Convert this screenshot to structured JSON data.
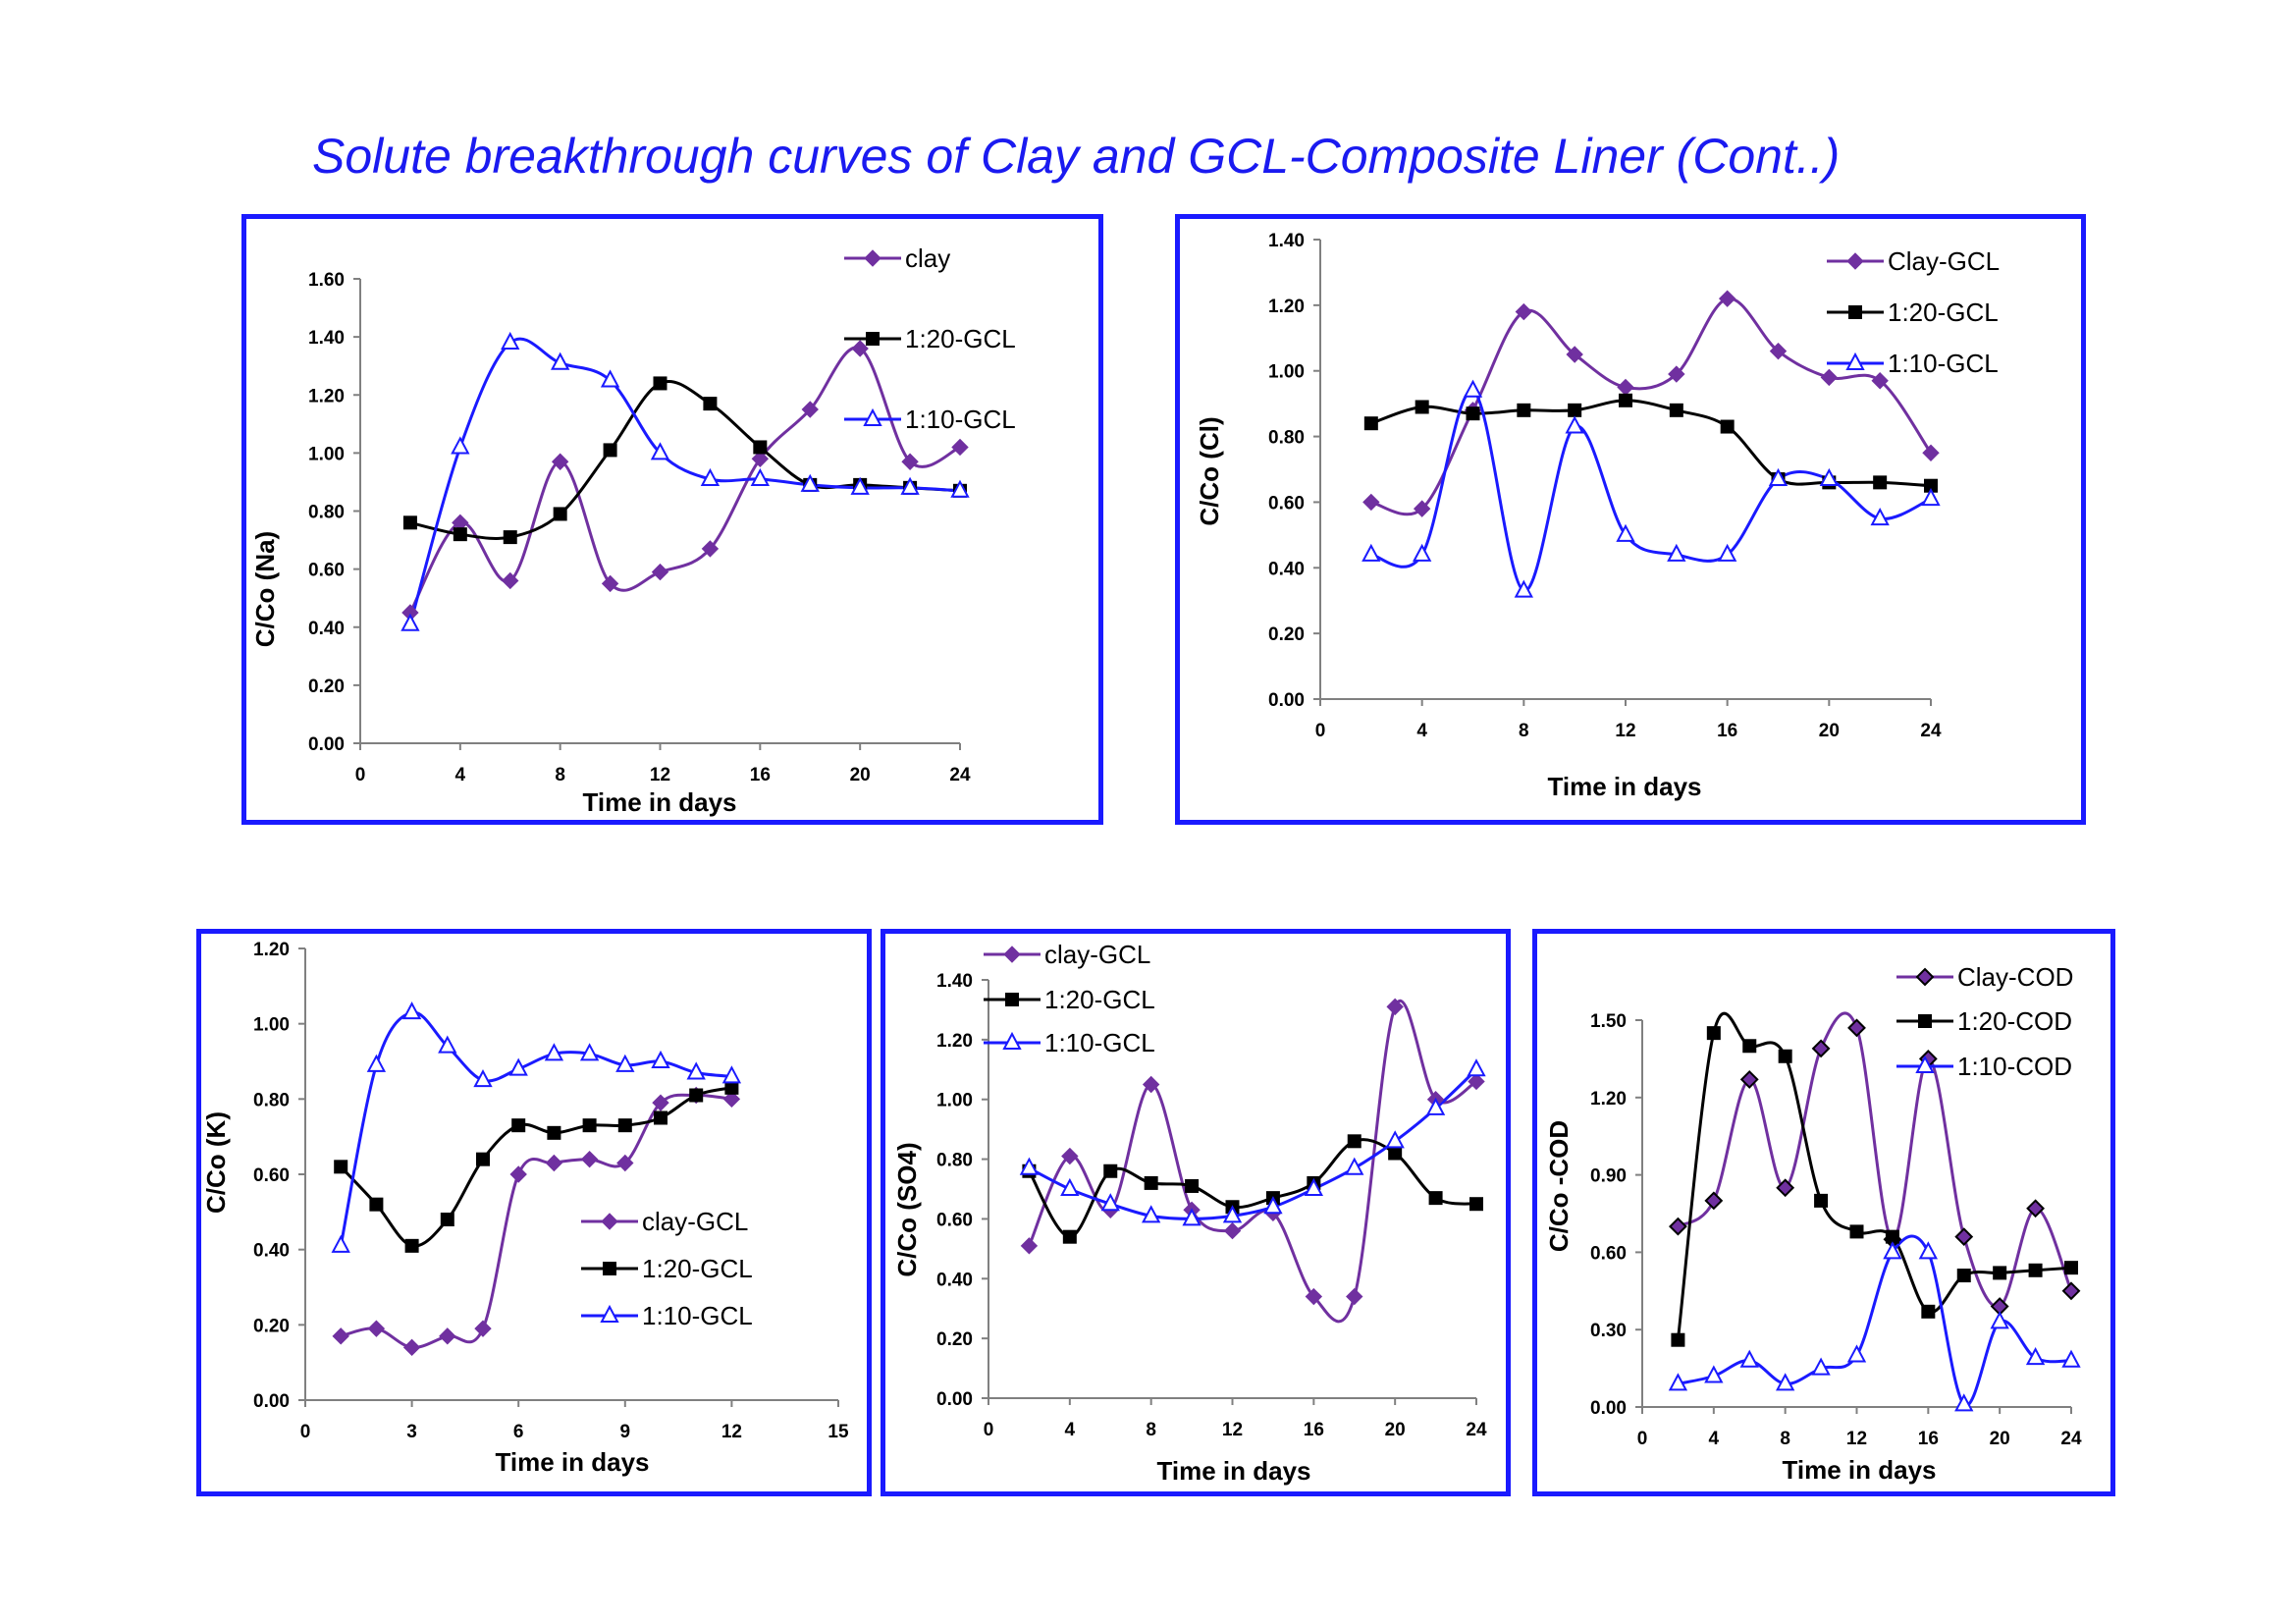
{
  "page": {
    "title": "Solute breakthrough curves of Clay and GCL-Composite Liner (Cont..)"
  },
  "chart_data": [
    {
      "id": "na",
      "type": "line",
      "xlabel": "Time in days",
      "ylabel": "C/Co (Na)",
      "xlim": [
        0,
        24
      ],
      "ylim": [
        0,
        1.6
      ],
      "xticks": [
        "0",
        "4",
        "8",
        "12",
        "16",
        "20",
        "24"
      ],
      "yticks": [
        "0.00",
        "0.20",
        "0.40",
        "0.60",
        "0.80",
        "1.00",
        "1.20",
        "1.40",
        "1.60"
      ],
      "legend_position": "right",
      "series": [
        {
          "name": "clay",
          "marker": "diamond",
          "color": "#7030a0",
          "x": [
            2,
            4,
            6,
            8,
            10,
            12,
            14,
            16,
            18,
            20,
            22,
            24
          ],
          "y": [
            0.45,
            0.76,
            0.56,
            0.97,
            0.55,
            0.59,
            0.67,
            0.98,
            1.15,
            1.36,
            0.97,
            1.02
          ]
        },
        {
          "name": "1:20-GCL",
          "marker": "square",
          "color": "#000000",
          "x": [
            2,
            4,
            6,
            8,
            10,
            12,
            14,
            16,
            18,
            20,
            22,
            24
          ],
          "y": [
            0.76,
            0.72,
            0.71,
            0.79,
            1.01,
            1.24,
            1.17,
            1.02,
            0.89,
            0.89,
            0.88,
            0.87
          ]
        },
        {
          "name": "1:10-GCL",
          "marker": "triangle",
          "color": "#1a1aff",
          "x": [
            2,
            4,
            6,
            8,
            10,
            12,
            14,
            16,
            18,
            20,
            22,
            24
          ],
          "y": [
            0.41,
            1.02,
            1.38,
            1.31,
            1.25,
            1.0,
            0.91,
            0.91,
            0.89,
            0.88,
            0.88,
            0.87
          ]
        }
      ]
    },
    {
      "id": "cl",
      "type": "line",
      "xlabel": "Time in days",
      "ylabel": "C/Co (Cl)",
      "xlim": [
        0,
        24
      ],
      "ylim": [
        0,
        1.4
      ],
      "xticks": [
        "0",
        "4",
        "8",
        "12",
        "16",
        "20",
        "24"
      ],
      "yticks": [
        "0.00",
        "0.20",
        "0.40",
        "0.60",
        "0.80",
        "1.00",
        "1.20",
        "1.40"
      ],
      "legend_position": "top-right",
      "series": [
        {
          "name": "Clay-GCL",
          "marker": "diamond",
          "color": "#7030a0",
          "x": [
            2,
            4,
            6,
            8,
            10,
            12,
            14,
            16,
            18,
            20,
            22,
            24
          ],
          "y": [
            0.6,
            0.58,
            0.88,
            1.18,
            1.05,
            0.95,
            0.99,
            1.22,
            1.06,
            0.98,
            0.97,
            0.75
          ]
        },
        {
          "name": "1:20-GCL",
          "marker": "square",
          "color": "#000000",
          "x": [
            2,
            4,
            6,
            8,
            10,
            12,
            14,
            16,
            18,
            20,
            22,
            24
          ],
          "y": [
            0.84,
            0.89,
            0.87,
            0.88,
            0.88,
            0.91,
            0.88,
            0.83,
            0.67,
            0.66,
            0.66,
            0.65
          ]
        },
        {
          "name": "1:10-GCL",
          "marker": "triangle",
          "color": "#1a1aff",
          "x": [
            2,
            4,
            6,
            8,
            10,
            12,
            14,
            16,
            18,
            20,
            22,
            24
          ],
          "y": [
            0.44,
            0.44,
            0.94,
            0.33,
            0.83,
            0.5,
            0.44,
            0.44,
            0.67,
            0.67,
            0.55,
            0.61
          ]
        }
      ]
    },
    {
      "id": "k",
      "type": "line",
      "xlabel": "Time in days",
      "ylabel": "C/Co  (K)",
      "xlim": [
        0,
        15
      ],
      "ylim": [
        0,
        1.2
      ],
      "xticks": [
        "0",
        "3",
        "6",
        "9",
        "12",
        "15"
      ],
      "yticks": [
        "0.00",
        "0.20",
        "0.40",
        "0.60",
        "0.80",
        "1.00",
        "1.20"
      ],
      "legend_position": "bottom-right",
      "series": [
        {
          "name": "clay-GCL",
          "marker": "diamond",
          "color": "#7030a0",
          "x": [
            1,
            2,
            3,
            4,
            5,
            6,
            7,
            8,
            9,
            10,
            11,
            12
          ],
          "y": [
            0.17,
            0.19,
            0.14,
            0.17,
            0.19,
            0.6,
            0.63,
            0.64,
            0.63,
            0.79,
            0.81,
            0.8
          ]
        },
        {
          "name": "1:20-GCL",
          "marker": "square",
          "color": "#000000",
          "x": [
            1,
            2,
            3,
            4,
            5,
            6,
            7,
            8,
            9,
            10,
            11,
            12
          ],
          "y": [
            0.62,
            0.52,
            0.41,
            0.48,
            0.64,
            0.73,
            0.71,
            0.73,
            0.73,
            0.75,
            0.81,
            0.83
          ]
        },
        {
          "name": "1:10-GCL",
          "marker": "triangle",
          "color": "#1a1aff",
          "x": [
            1,
            2,
            3,
            4,
            5,
            6,
            7,
            8,
            9,
            10,
            11,
            12
          ],
          "y": [
            0.41,
            0.89,
            1.03,
            0.94,
            0.85,
            0.88,
            0.92,
            0.92,
            0.89,
            0.9,
            0.87,
            0.86
          ]
        }
      ]
    },
    {
      "id": "so4",
      "type": "line",
      "xlabel": "Time in days",
      "ylabel": "C/Co (SO4)",
      "xlim": [
        0,
        24
      ],
      "ylim": [
        0,
        1.4
      ],
      "xticks": [
        "0",
        "4",
        "8",
        "12",
        "16",
        "20",
        "24"
      ],
      "yticks": [
        "0.00",
        "0.20",
        "0.40",
        "0.60",
        "0.80",
        "1.00",
        "1.20",
        "1.40"
      ],
      "legend_position": "top-left",
      "series": [
        {
          "name": "clay-GCL",
          "marker": "diamond",
          "color": "#7030a0",
          "x": [
            2,
            4,
            6,
            8,
            10,
            12,
            14,
            16,
            18,
            20,
            22,
            24
          ],
          "y": [
            0.51,
            0.81,
            0.63,
            1.05,
            0.63,
            0.56,
            0.62,
            0.34,
            0.34,
            1.31,
            1.0,
            1.06
          ]
        },
        {
          "name": "1:20-GCL",
          "marker": "square",
          "color": "#000000",
          "x": [
            2,
            4,
            6,
            8,
            10,
            12,
            14,
            16,
            18,
            20,
            22,
            24
          ],
          "y": [
            0.76,
            0.54,
            0.76,
            0.72,
            0.71,
            0.64,
            0.67,
            0.72,
            0.86,
            0.82,
            0.67,
            0.65
          ]
        },
        {
          "name": "1:10-GCL",
          "marker": "triangle",
          "color": "#1a1aff",
          "x": [
            2,
            4,
            6,
            8,
            10,
            12,
            14,
            16,
            18,
            20,
            22,
            24
          ],
          "y": [
            0.77,
            0.7,
            0.65,
            0.61,
            0.6,
            0.61,
            0.64,
            0.7,
            0.77,
            0.86,
            0.97,
            1.1
          ]
        }
      ]
    },
    {
      "id": "cod",
      "type": "line",
      "xlabel": "Time in days",
      "ylabel": "C/Co -COD",
      "xlim": [
        0,
        24
      ],
      "ylim": [
        0,
        1.5
      ],
      "xticks": [
        "0",
        "4",
        "8",
        "12",
        "16",
        "20",
        "24"
      ],
      "yticks": [
        "0.00",
        "0.30",
        "0.60",
        "0.90",
        "1.20",
        "1.50"
      ],
      "legend_position": "top-right",
      "series": [
        {
          "name": "Clay-COD",
          "marker": "diamond-outline",
          "color": "#7030a0",
          "x": [
            2,
            4,
            6,
            8,
            10,
            12,
            14,
            16,
            18,
            20,
            22,
            24
          ],
          "y": [
            0.7,
            0.8,
            1.27,
            0.85,
            1.39,
            1.47,
            0.65,
            1.35,
            0.66,
            0.39,
            0.77,
            0.45
          ]
        },
        {
          "name": "1:20-COD",
          "marker": "square",
          "color": "#000000",
          "x": [
            2,
            4,
            6,
            8,
            10,
            12,
            14,
            16,
            18,
            20,
            22,
            24
          ],
          "y": [
            0.26,
            1.45,
            1.4,
            1.36,
            0.8,
            0.68,
            0.66,
            0.37,
            0.51,
            0.52,
            0.53,
            0.54
          ]
        },
        {
          "name": "1:10-COD",
          "marker": "triangle",
          "color": "#1a1aff",
          "x": [
            2,
            4,
            6,
            8,
            10,
            12,
            14,
            16,
            18,
            20,
            22,
            24
          ],
          "y": [
            0.09,
            0.12,
            0.18,
            0.09,
            0.15,
            0.2,
            0.6,
            0.6,
            0.01,
            0.33,
            0.19,
            0.18
          ]
        }
      ]
    }
  ]
}
